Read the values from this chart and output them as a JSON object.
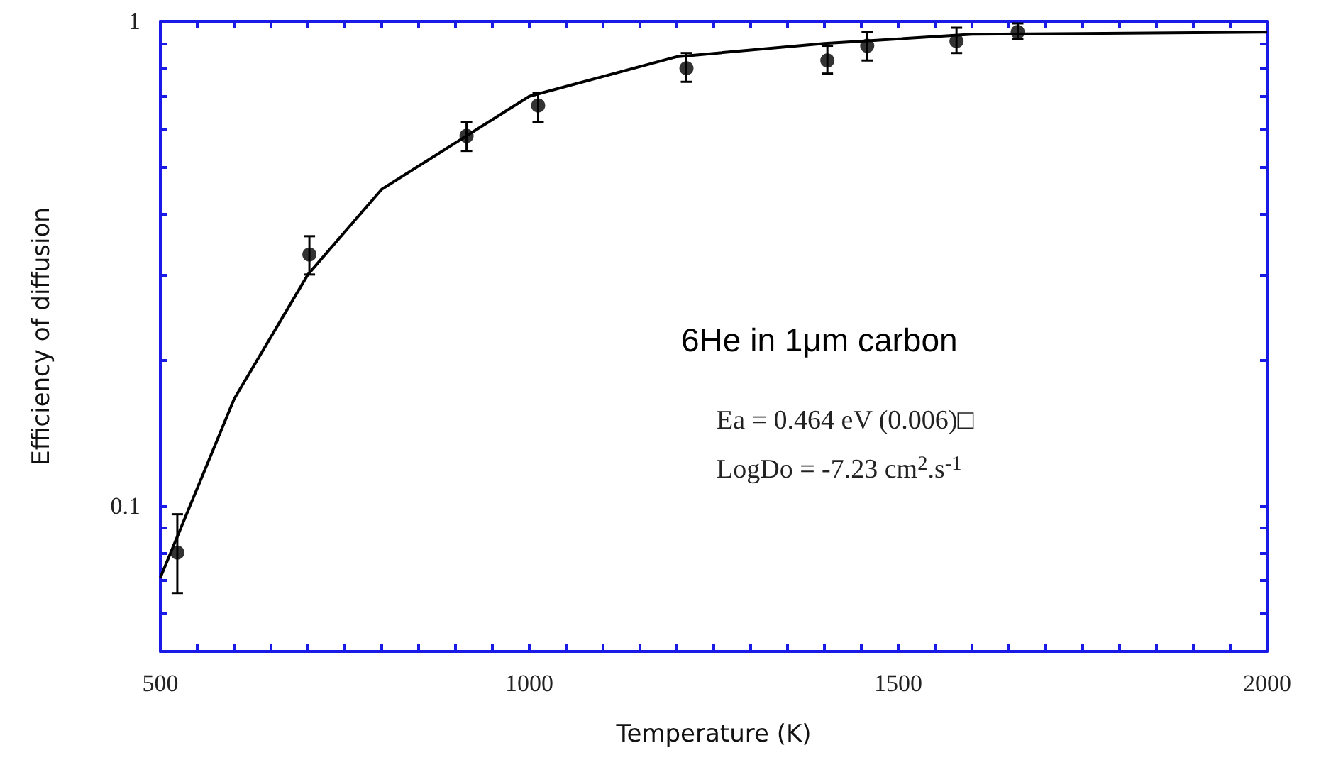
{
  "chart_data": {
    "type": "scatter",
    "xlabel": "Temperature (K)",
    "ylabel": "Efficiency of diffusion",
    "log": "y",
    "xlim": [
      500,
      2000
    ],
    "ylim": [
      0.05,
      1
    ],
    "xticks": [
      500,
      {
        "value": 550,
        "label": null
      },
      {
        "value": 600,
        "label": null
      },
      {
        "value": 650,
        "label": null
      },
      {
        "value": 700,
        "label": null
      },
      {
        "value": 750,
        "label": null
      },
      {
        "value": 800,
        "label": null
      },
      {
        "value": 850,
        "label": null
      },
      {
        "value": 900,
        "label": null
      },
      {
        "value": 950,
        "label": null
      },
      1000,
      {
        "value": 1050,
        "label": null
      },
      {
        "value": 1100,
        "label": null
      },
      {
        "value": 1150,
        "label": null
      },
      {
        "value": 1200,
        "label": null
      },
      {
        "value": 1250,
        "label": null
      },
      {
        "value": 1300,
        "label": null
      },
      {
        "value": 1350,
        "label": null
      },
      {
        "value": 1400,
        "label": null
      },
      {
        "value": 1450,
        "label": null
      },
      1500,
      {
        "value": 1550,
        "label": null
      },
      {
        "value": 1600,
        "label": null
      },
      {
        "value": 1650,
        "label": null
      },
      {
        "value": 1700,
        "label": null
      },
      {
        "value": 1750,
        "label": null
      },
      {
        "value": 1800,
        "label": null
      },
      {
        "value": 1850,
        "label": null
      },
      {
        "value": 1900,
        "label": null
      },
      {
        "value": 1950,
        "label": null
      },
      2000
    ],
    "yticks": [
      {
        "value": 0.05,
        "label": null
      },
      {
        "value": 0.06,
        "label": null
      },
      {
        "value": 0.07,
        "label": null
      },
      {
        "value": 0.08,
        "label": null
      },
      {
        "value": 0.09,
        "label": null
      },
      0.1,
      {
        "value": 0.2,
        "label": null
      },
      {
        "value": 0.3,
        "label": null
      },
      {
        "value": 0.4,
        "label": null
      },
      {
        "value": 0.5,
        "label": null
      },
      {
        "value": 0.6,
        "label": null
      },
      {
        "value": 0.7,
        "label": null
      },
      {
        "value": 0.8,
        "label": null
      },
      {
        "value": 0.9,
        "label": null
      },
      1
    ],
    "series": [
      {
        "color": "#000000",
        "marker": "circle",
        "x": [
          523,
          702,
          915,
          1012,
          1213,
          1404,
          1458,
          1579,
          1662
        ],
        "values": [
          0.08,
          0.33,
          0.58,
          0.67,
          0.8,
          0.83,
          0.89,
          0.91,
          0.95
        ],
        "errors": [
          [
            0.066,
            0.096
          ],
          [
            0.3,
            0.36
          ],
          [
            0.54,
            0.62
          ],
          [
            0.62,
            0.71
          ],
          [
            0.75,
            0.86
          ],
          [
            0.78,
            0.89
          ],
          [
            0.83,
            0.95
          ],
          [
            0.86,
            0.97
          ],
          [
            0.92,
            0.99
          ]
        ]
      },
      {
        "type": "line",
        "color": "#000000",
        "marker": "none",
        "line_style": "solid",
        "x": [
          500,
          600,
          700,
          800,
          1000,
          1200,
          1400,
          1600,
          2000
        ],
        "values": [
          0.071,
          0.166,
          0.3,
          0.45,
          0.7,
          0.845,
          0.9,
          0.94,
          0.95
        ]
      }
    ],
    "annotations": [
      "6He in 1μm carbon",
      "Ea = 0.464 eV (0.006)□",
      "LogDo = -7.23 cm$^{2}$.s$^{-1}$"
    ]
  }
}
